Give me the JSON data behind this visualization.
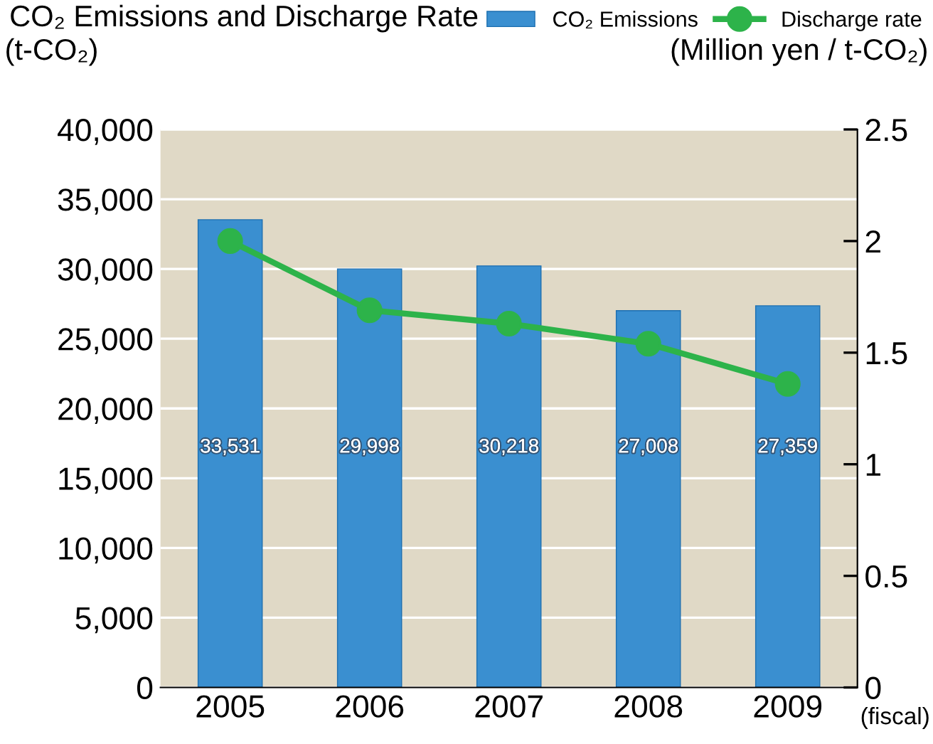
{
  "chart_data": {
    "type": "bar",
    "title": "CO₂ Emissions and Discharge Rate",
    "categories": [
      "2005",
      "2006",
      "2007",
      "2008",
      "2009"
    ],
    "xlabel": "(fiscal)",
    "ylabel": "(t-CO₂)",
    "y2label": "(Million yen / t-CO₂)",
    "series": [
      {
        "name": "CO₂ Emissions",
        "color": "#3a8fd0",
        "values": [
          33531,
          29998,
          30218,
          27008,
          27359
        ],
        "value_labels": [
          "33,531",
          "29,998",
          "30,218",
          "27,008",
          "27,359"
        ]
      },
      {
        "name": "Discharge rate",
        "type": "line",
        "axis": "y2",
        "color": "#2db34a",
        "marker": "circle",
        "values": [
          2.0,
          1.69,
          1.63,
          1.54,
          1.36
        ]
      }
    ],
    "ylim": [
      0,
      40000
    ],
    "yticks": [
      {
        "value": 0,
        "label": "0"
      },
      {
        "value": 5000,
        "label": "5,000"
      },
      {
        "value": 10000,
        "label": "10,000"
      },
      {
        "value": 15000,
        "label": "15,000"
      },
      {
        "value": 20000,
        "label": "20,000"
      },
      {
        "value": 25000,
        "label": "25,000"
      },
      {
        "value": 30000,
        "label": "30,000"
      },
      {
        "value": 35000,
        "label": "35,000"
      },
      {
        "value": 40000,
        "label": "40,000"
      }
    ],
    "y2lim": [
      0,
      2.5
    ],
    "y2ticks": [
      0,
      0.5,
      1,
      1.5,
      2,
      2.5
    ],
    "grid": "y",
    "legend": "top right"
  }
}
